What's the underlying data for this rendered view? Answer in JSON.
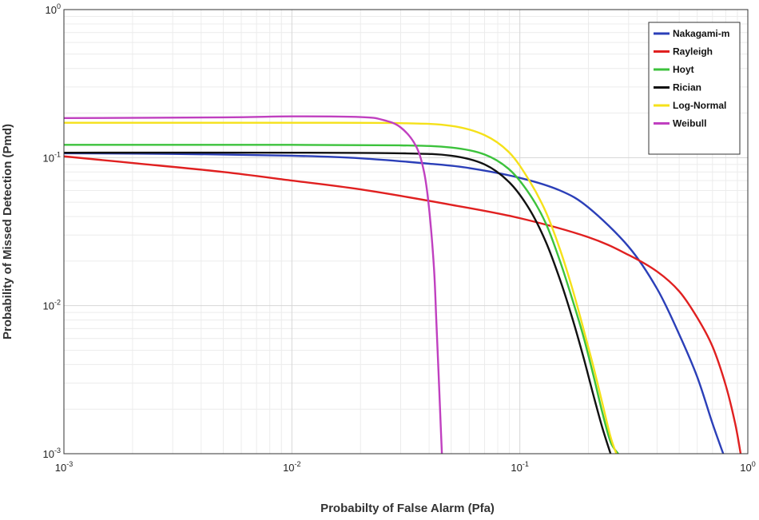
{
  "chart_data": {
    "type": "line",
    "title": "",
    "xlabel": "Probabilty of  False Alarm (Pfa)",
    "ylabel": "Probability of Missed Detection (Pmd)",
    "x_scale": "log",
    "y_scale": "log",
    "xlim": [
      0.001,
      1
    ],
    "ylim": [
      0.001,
      1
    ],
    "grid": true,
    "legend_position": "top-right",
    "x_ticks": [
      {
        "base": "10",
        "exp": "-3"
      },
      {
        "base": "10",
        "exp": "-2"
      },
      {
        "base": "10",
        "exp": "-1"
      },
      {
        "base": "10",
        "exp": "0"
      }
    ],
    "y_ticks": [
      {
        "base": "10",
        "exp": "-3"
      },
      {
        "base": "10",
        "exp": "-2"
      },
      {
        "base": "10",
        "exp": "-1"
      },
      {
        "base": "10",
        "exp": "0"
      }
    ],
    "series": [
      {
        "name": "Nakagami-m",
        "color": "#2b3fb8",
        "x": [
          0.001,
          0.003,
          0.01,
          0.02,
          0.04,
          0.06,
          0.1,
          0.15,
          0.2,
          0.3,
          0.4,
          0.5,
          0.6,
          0.7,
          0.78
        ],
        "y": [
          0.107,
          0.106,
          0.103,
          0.099,
          0.091,
          0.085,
          0.073,
          0.06,
          0.046,
          0.025,
          0.013,
          0.0064,
          0.0033,
          0.0016,
          0.001
        ]
      },
      {
        "name": "Rayleigh",
        "color": "#e02020",
        "x": [
          0.001,
          0.002,
          0.005,
          0.01,
          0.02,
          0.05,
          0.1,
          0.2,
          0.3,
          0.4,
          0.5,
          0.6,
          0.7,
          0.8,
          0.88,
          0.93
        ],
        "y": [
          0.102,
          0.092,
          0.08,
          0.07,
          0.061,
          0.048,
          0.039,
          0.029,
          0.022,
          0.017,
          0.0125,
          0.0083,
          0.0053,
          0.0029,
          0.0016,
          0.001
        ]
      },
      {
        "name": "Hoyt",
        "color": "#3cc23c",
        "x": [
          0.001,
          0.01,
          0.03,
          0.05,
          0.07,
          0.09,
          0.11,
          0.13,
          0.15,
          0.17,
          0.19,
          0.21,
          0.23,
          0.25,
          0.27
        ],
        "y": [
          0.122,
          0.122,
          0.121,
          0.117,
          0.105,
          0.083,
          0.057,
          0.036,
          0.02,
          0.011,
          0.0062,
          0.0034,
          0.0019,
          0.0012,
          0.001
        ]
      },
      {
        "name": "Rician",
        "color": "#111111",
        "x": [
          0.001,
          0.01,
          0.03,
          0.05,
          0.07,
          0.09,
          0.11,
          0.13,
          0.15,
          0.17,
          0.19,
          0.21,
          0.23,
          0.25
        ],
        "y": [
          0.108,
          0.108,
          0.107,
          0.103,
          0.09,
          0.068,
          0.045,
          0.027,
          0.015,
          0.0082,
          0.0045,
          0.0025,
          0.0015,
          0.001
        ]
      },
      {
        "name": "Log-Normal",
        "color": "#f5e11a",
        "x": [
          0.001,
          0.01,
          0.03,
          0.05,
          0.07,
          0.09,
          0.11,
          0.13,
          0.15,
          0.17,
          0.19,
          0.21,
          0.23,
          0.25,
          0.265
        ],
        "y": [
          0.172,
          0.172,
          0.171,
          0.164,
          0.142,
          0.108,
          0.07,
          0.043,
          0.024,
          0.013,
          0.007,
          0.0039,
          0.0022,
          0.0013,
          0.001
        ]
      },
      {
        "name": "Weibull",
        "color": "#c040c0",
        "x": [
          0.001,
          0.005,
          0.01,
          0.02,
          0.025,
          0.03,
          0.035,
          0.038,
          0.04,
          0.042,
          0.043,
          0.044,
          0.045,
          0.0455
        ],
        "y": [
          0.185,
          0.187,
          0.19,
          0.188,
          0.18,
          0.16,
          0.12,
          0.08,
          0.045,
          0.018,
          0.008,
          0.0035,
          0.0015,
          0.001
        ]
      }
    ]
  }
}
